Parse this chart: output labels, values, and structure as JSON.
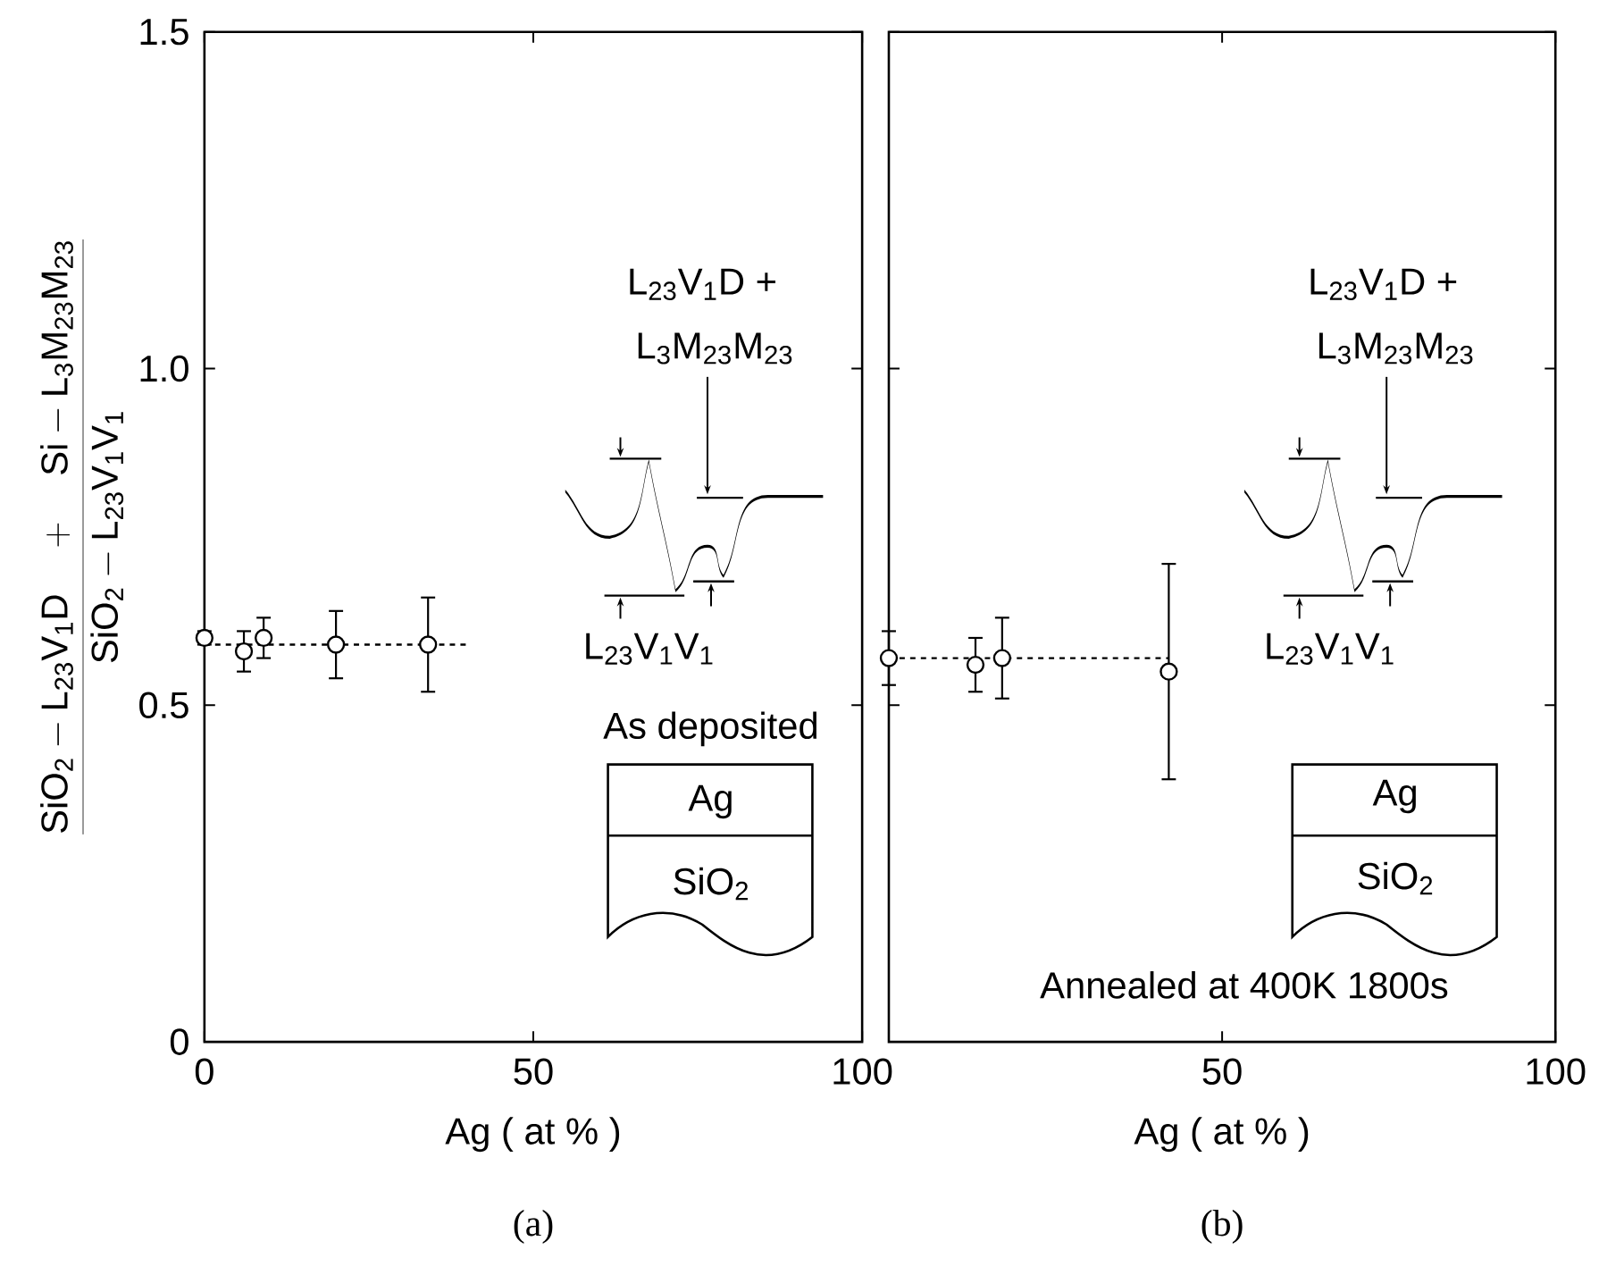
{
  "chart_data": [
    {
      "type": "scatter",
      "title": "(a)",
      "xlabel": "Ag ( at % )",
      "ylabel": "\\frac{\\mathrm{SiO_2-L_{23}V_1D\\quad+\\quad Si-L_3M_{23}M_{23}}}{\\mathrm{SiO_2-L_{23}V_1V_1}}",
      "xlim": [
        0,
        100
      ],
      "ylim": [
        0,
        1.5
      ],
      "xticks": [
        0,
        50,
        100
      ],
      "yticks": [
        0,
        0.5,
        {
          "value": 1.0,
          "label": "1.0"
        },
        1.5
      ],
      "annotations": [
        "L$_{23}$V$_{1}$D +",
        "L$_{3}$M$_{23}$M$_{23}$",
        "L$_{23}$V$_{1}$V$_{1}$",
        "As deposited",
        "Ag",
        "SiO$_{2}$"
      ],
      "series": [
        {
          "color": "#000000",
          "marker": "circle",
          "x": [
            0,
            6,
            9,
            20,
            34
          ],
          "values": [
            0.6,
            0.58,
            0.6,
            0.59,
            0.59
          ],
          "errors": [
            0.01,
            0.03,
            0.03,
            0.05,
            0.07
          ]
        },
        {
          "type": "line",
          "color": "#000000",
          "marker": "none",
          "line_style": "dashed",
          "x": [
            0,
            40
          ],
          "values": [
            0.59,
            0.59
          ]
        }
      ]
    },
    {
      "type": "scatter",
      "title": "(b)",
      "xlabel": "Ag ( at % )",
      "tick_labels": "x",
      "xlim": [
        0,
        100
      ],
      "ylim": [
        0,
        1.5
      ],
      "xticks": [
        {
          "value": 0,
          "label": null
        },
        50,
        100
      ],
      "yticks": [
        0,
        0.5,
        1.0,
        1.5
      ],
      "annotations": [
        "L$_{23}$V$_{1}$D +",
        "L$_{3}$M$_{23}$M$_{23}$",
        "L$_{23}$V$_{1}$V$_{1}$",
        "Ag",
        "SiO$_{2}$",
        "Annealed at 400K 1800s"
      ],
      "series": [
        {
          "color": "#000000",
          "marker": "circle",
          "x": [
            0,
            13,
            17,
            42
          ],
          "values": [
            0.57,
            0.56,
            0.57,
            0.55
          ],
          "errors": [
            0.04,
            0.04,
            0.06,
            0.16
          ]
        },
        {
          "type": "line",
          "color": "#000000",
          "marker": "none",
          "line_style": "dashed",
          "x": [
            0,
            42
          ],
          "values": [
            0.57,
            0.57
          ]
        }
      ]
    }
  ]
}
